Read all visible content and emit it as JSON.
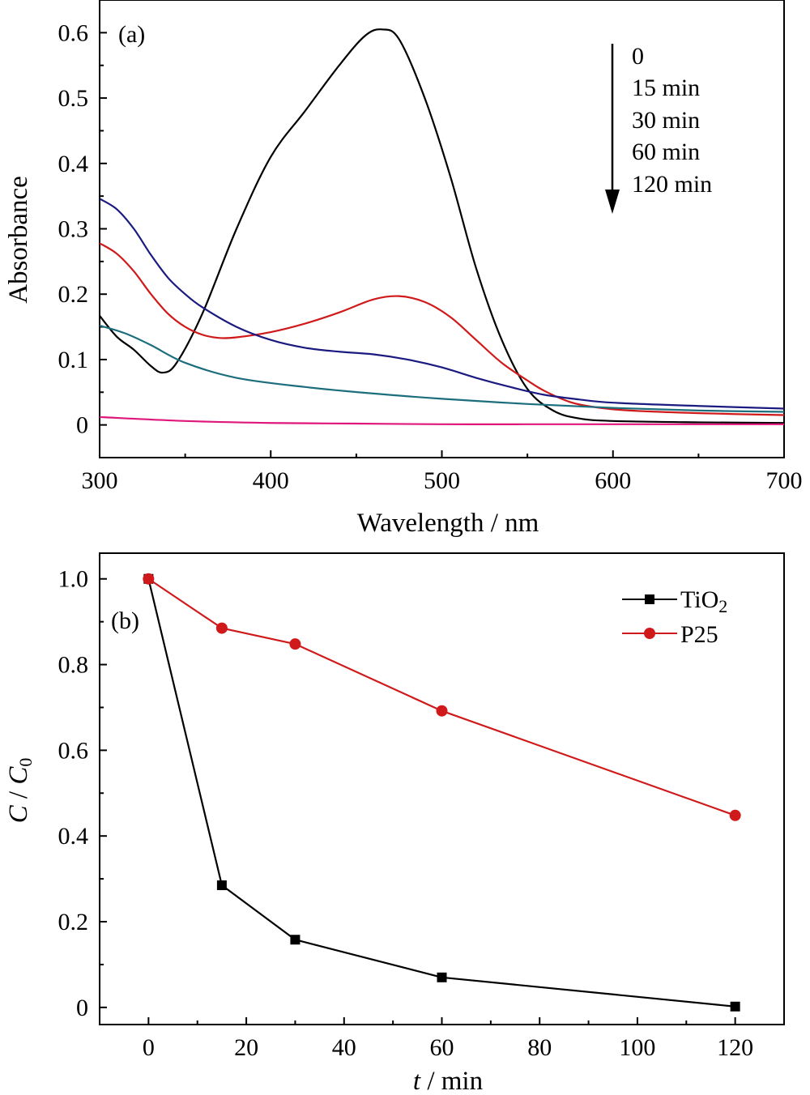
{
  "chart_data": [
    {
      "type": "line",
      "panel_label": "(a)",
      "xlabel": "Wavelength / nm",
      "ylabel": "Absorbance",
      "xlim": [
        300,
        700
      ],
      "ylim": [
        -0.05,
        0.65
      ],
      "x_ticks": [
        300,
        400,
        500,
        600,
        700
      ],
      "x_tick_labels": [
        "300",
        "400",
        "500",
        "600",
        "700"
      ],
      "y_ticks": [
        0,
        0.1,
        0.2,
        0.3,
        0.4,
        0.5,
        0.6
      ],
      "y_tick_labels": [
        "0",
        "0.1",
        "0.2",
        "0.3",
        "0.4",
        "0.5",
        "0.6"
      ],
      "annotation": {
        "direction": "down",
        "labels": [
          "0",
          "15 min",
          "30 min",
          "60 min",
          "120 min"
        ]
      },
      "series": [
        {
          "name": "0",
          "color": "#000000",
          "x": [
            300,
            310,
            320,
            330,
            337,
            345,
            360,
            380,
            400,
            420,
            440,
            455,
            465,
            475,
            490,
            505,
            520,
            535,
            550,
            565,
            580,
            600,
            650,
            700
          ],
          "y": [
            0.167,
            0.135,
            0.115,
            0.09,
            0.08,
            0.095,
            0.17,
            0.3,
            0.41,
            0.48,
            0.55,
            0.595,
            0.605,
            0.59,
            0.5,
            0.38,
            0.24,
            0.13,
            0.055,
            0.022,
            0.01,
            0.006,
            0.004,
            0.003
          ]
        },
        {
          "name": "15 min",
          "color": "#d0191a",
          "x": [
            300,
            310,
            320,
            330,
            340,
            350,
            360,
            370,
            380,
            400,
            420,
            440,
            460,
            475,
            490,
            505,
            520,
            535,
            550,
            560,
            575,
            590,
            610,
            650,
            700
          ],
          "y": [
            0.278,
            0.262,
            0.235,
            0.2,
            0.17,
            0.15,
            0.138,
            0.133,
            0.134,
            0.142,
            0.155,
            0.172,
            0.192,
            0.197,
            0.188,
            0.165,
            0.13,
            0.095,
            0.068,
            0.052,
            0.035,
            0.027,
            0.022,
            0.018,
            0.015
          ]
        },
        {
          "name": "30 min",
          "color": "#1a1a80",
          "x": [
            300,
            310,
            320,
            330,
            340,
            350,
            360,
            380,
            400,
            420,
            440,
            460,
            480,
            500,
            520,
            540,
            560,
            580,
            600,
            650,
            700
          ],
          "y": [
            0.346,
            0.33,
            0.3,
            0.26,
            0.225,
            0.2,
            0.18,
            0.15,
            0.13,
            0.118,
            0.112,
            0.108,
            0.1,
            0.088,
            0.072,
            0.058,
            0.046,
            0.039,
            0.034,
            0.029,
            0.025
          ]
        },
        {
          "name": "60 min",
          "color": "#1c6e7d",
          "x": [
            300,
            315,
            330,
            350,
            380,
            420,
            460,
            500,
            550,
            600,
            650,
            700
          ],
          "y": [
            0.152,
            0.14,
            0.122,
            0.095,
            0.072,
            0.058,
            0.048,
            0.04,
            0.032,
            0.026,
            0.022,
            0.02
          ]
        },
        {
          "name": "120 min",
          "color": "#e0177a",
          "x": [
            300,
            350,
            400,
            450,
            500,
            550,
            600,
            650,
            700
          ],
          "y": [
            0.012,
            0.006,
            0.003,
            0.002,
            0.001,
            0.001,
            0.001,
            0.001,
            0.001
          ]
        }
      ]
    },
    {
      "type": "line",
      "panel_label": "(b)",
      "xlabel_italic": "t",
      "xlabel_rest": " / min",
      "ylabel_c": "C",
      "ylabel_sep": " / ",
      "ylabel_c0": "C",
      "ylabel_sub": "0",
      "xlim": [
        -10,
        130
      ],
      "ylim": [
        -0.04,
        1.06
      ],
      "x_ticks": [
        0,
        20,
        40,
        60,
        80,
        100,
        120
      ],
      "x_tick_labels": [
        "0",
        "20",
        "40",
        "60",
        "80",
        "100",
        "120"
      ],
      "y_ticks": [
        0,
        0.2,
        0.4,
        0.6,
        0.8,
        1.0
      ],
      "y_tick_labels": [
        "0",
        "0.2",
        "0.4",
        "0.6",
        "0.8",
        "1.0"
      ],
      "legend_position": "top-right",
      "series": [
        {
          "name": "TiO",
          "name_sub": "2",
          "color": "#000000",
          "marker": "square",
          "x": [
            0,
            15,
            30,
            60,
            120
          ],
          "y": [
            1.0,
            0.285,
            0.158,
            0.07,
            0.002
          ]
        },
        {
          "name": "P25",
          "color": "#d0191a",
          "marker": "circle",
          "x": [
            0,
            15,
            30,
            60,
            120
          ],
          "y": [
            1.0,
            0.885,
            0.848,
            0.692,
            0.448
          ]
        }
      ]
    }
  ]
}
